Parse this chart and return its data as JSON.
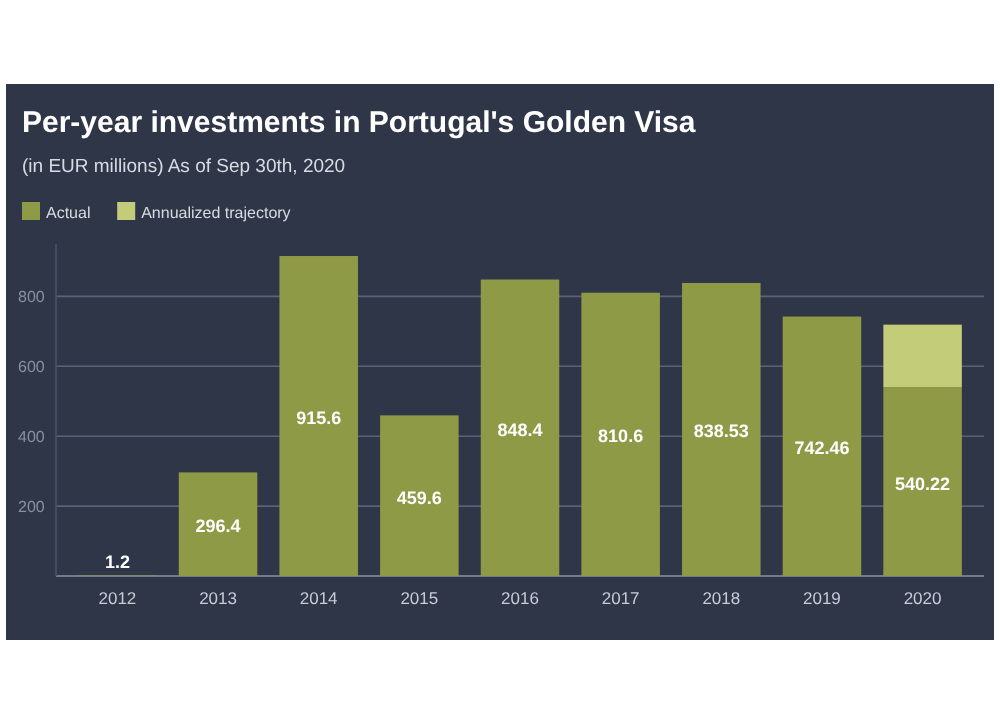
{
  "chart_data": {
    "type": "bar",
    "title": "Per-year investments in Portugal's Golden Visa",
    "subtitle": "(in EUR millions) As of Sep 30th, 2020",
    "categories": [
      "2012",
      "2013",
      "2014",
      "2015",
      "2016",
      "2017",
      "2018",
      "2019",
      "2020"
    ],
    "stacked": true,
    "series": [
      {
        "name": "Actual",
        "color": "#8f9a46",
        "values": [
          1.2,
          296.4,
          915.6,
          459.6,
          848.4,
          810.6,
          838.53,
          742.46,
          540.22
        ],
        "value_labels": [
          "1.2",
          "296.4",
          "915.6",
          "459.6",
          "848.4",
          "810.6",
          "838.53",
          "742.46",
          "540.22"
        ]
      },
      {
        "name": "Annualized trajectory",
        "color": "#c3cc78",
        "values": [
          null,
          null,
          null,
          null,
          null,
          null,
          null,
          null,
          179
        ]
      }
    ],
    "ylim": [
      0,
      950
    ],
    "yticks": [
      200,
      400,
      600,
      800
    ],
    "grid": "y",
    "legend": "top left"
  }
}
